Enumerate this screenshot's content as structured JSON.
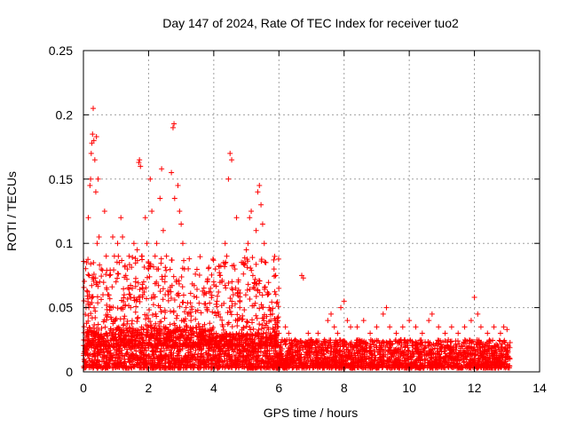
{
  "chart_data": {
    "type": "scatter",
    "title": "Day 147 of 2024, Rate Of TEC Index for receiver tuo2",
    "xlabel": "GPS time / hours",
    "ylabel": "ROTI / TECUs",
    "xlim": [
      0,
      14
    ],
    "ylim": [
      0,
      0.25
    ],
    "xticks": [
      "0",
      "2",
      "4",
      "6",
      "8",
      "10",
      "12",
      "14"
    ],
    "yticks": [
      "0",
      "0.05",
      "0.1",
      "0.15",
      "0.2",
      "0.25"
    ],
    "grid": true,
    "marker": "+",
    "color": "#ff0000",
    "series": [
      {
        "name": "ROTI",
        "points": [
          [
            0.05,
            0.02
          ],
          [
            0.08,
            0.05
          ],
          [
            0.1,
            0.085
          ],
          [
            0.12,
            0.03
          ],
          [
            0.15,
            0.12
          ],
          [
            0.18,
            0.06
          ],
          [
            0.2,
            0.145
          ],
          [
            0.22,
            0.15
          ],
          [
            0.24,
            0.17
          ],
          [
            0.26,
            0.178
          ],
          [
            0.28,
            0.185
          ],
          [
            0.3,
            0.205
          ],
          [
            0.32,
            0.18
          ],
          [
            0.35,
            0.165
          ],
          [
            0.38,
            0.14
          ],
          [
            0.4,
            0.183
          ],
          [
            0.42,
            0.1
          ],
          [
            0.45,
            0.15
          ],
          [
            0.48,
            0.105
          ],
          [
            0.5,
            0.07
          ],
          [
            0.55,
            0.08
          ],
          [
            0.6,
            0.06
          ],
          [
            0.65,
            0.125
          ],
          [
            0.7,
            0.09
          ],
          [
            0.75,
            0.06
          ],
          [
            0.8,
            0.075
          ],
          [
            0.85,
            0.05
          ],
          [
            0.9,
            0.105
          ],
          [
            0.95,
            0.09
          ],
          [
            1.0,
            0.07
          ],
          [
            1.05,
            0.1
          ],
          [
            1.1,
            0.085
          ],
          [
            1.15,
            0.12
          ],
          [
            1.2,
            0.105
          ],
          [
            1.25,
            0.06
          ],
          [
            1.3,
            0.075
          ],
          [
            1.35,
            0.08
          ],
          [
            1.4,
            0.09
          ],
          [
            1.45,
            0.05
          ],
          [
            1.5,
            0.065
          ],
          [
            1.55,
            0.1
          ],
          [
            1.6,
            0.07
          ],
          [
            1.65,
            0.095
          ],
          [
            1.7,
            0.163
          ],
          [
            1.72,
            0.165
          ],
          [
            1.75,
            0.16
          ],
          [
            1.8,
            0.09
          ],
          [
            1.85,
            0.07
          ],
          [
            1.9,
            0.12
          ],
          [
            1.95,
            0.1
          ],
          [
            2.0,
            0.08
          ],
          [
            2.05,
            0.15
          ],
          [
            2.1,
            0.125
          ],
          [
            2.15,
            0.06
          ],
          [
            2.2,
            0.09
          ],
          [
            2.25,
            0.1
          ],
          [
            2.3,
            0.08
          ],
          [
            2.35,
            0.135
          ],
          [
            2.4,
            0.158
          ],
          [
            2.45,
            0.11
          ],
          [
            2.5,
            0.07
          ],
          [
            2.55,
            0.09
          ],
          [
            2.6,
            0.06
          ],
          [
            2.7,
            0.155
          ],
          [
            2.75,
            0.19
          ],
          [
            2.78,
            0.193
          ],
          [
            2.8,
            0.135
          ],
          [
            2.85,
            0.07
          ],
          [
            2.9,
            0.145
          ],
          [
            2.95,
            0.125
          ],
          [
            3.0,
            0.115
          ],
          [
            3.05,
            0.1
          ],
          [
            3.1,
            0.08
          ],
          [
            3.15,
            0.05
          ],
          [
            3.2,
            0.045
          ],
          [
            3.3,
            0.04
          ],
          [
            3.4,
            0.03
          ],
          [
            3.5,
            0.028
          ],
          [
            3.6,
            0.025
          ],
          [
            3.7,
            0.06
          ],
          [
            3.8,
            0.07
          ],
          [
            3.9,
            0.065
          ],
          [
            4.0,
            0.07
          ],
          [
            4.05,
            0.08
          ],
          [
            4.1,
            0.055
          ],
          [
            4.15,
            0.045
          ],
          [
            4.2,
            0.075
          ],
          [
            4.25,
            0.07
          ],
          [
            4.3,
            0.085
          ],
          [
            4.35,
            0.1
          ],
          [
            4.4,
            0.09
          ],
          [
            4.45,
            0.15
          ],
          [
            4.5,
            0.17
          ],
          [
            4.55,
            0.165
          ],
          [
            4.6,
            0.06
          ],
          [
            4.65,
            0.08
          ],
          [
            4.7,
            0.12
          ],
          [
            4.75,
            0.07
          ],
          [
            4.8,
            0.05
          ],
          [
            4.9,
            0.085
          ],
          [
            5.0,
            0.095
          ],
          [
            5.05,
            0.1
          ],
          [
            5.1,
            0.12
          ],
          [
            5.15,
            0.125
          ],
          [
            5.2,
            0.075
          ],
          [
            5.25,
            0.065
          ],
          [
            5.3,
            0.11
          ],
          [
            5.35,
            0.14
          ],
          [
            5.4,
            0.145
          ],
          [
            5.45,
            0.13
          ],
          [
            5.5,
            0.115
          ],
          [
            5.55,
            0.1
          ],
          [
            5.6,
            0.085
          ],
          [
            5.65,
            0.06
          ],
          [
            5.7,
            0.05
          ],
          [
            5.75,
            0.04
          ],
          [
            5.8,
            0.045
          ],
          [
            5.85,
            0.08
          ],
          [
            5.9,
            0.075
          ],
          [
            5.95,
            0.035
          ],
          [
            6.0,
            0.03
          ],
          [
            6.1,
            0.025
          ],
          [
            6.2,
            0.035
          ],
          [
            6.3,
            0.03
          ],
          [
            6.4,
            0.02
          ],
          [
            6.5,
            0.025
          ],
          [
            6.7,
            0.075
          ],
          [
            6.75,
            0.073
          ],
          [
            6.9,
            0.03
          ],
          [
            7.0,
            0.025
          ],
          [
            7.2,
            0.03
          ],
          [
            7.4,
            0.025
          ],
          [
            7.5,
            0.04
          ],
          [
            7.6,
            0.045
          ],
          [
            7.7,
            0.035
          ],
          [
            7.8,
            0.03
          ],
          [
            7.9,
            0.05
          ],
          [
            8.0,
            0.055
          ],
          [
            8.1,
            0.04
          ],
          [
            8.2,
            0.035
          ],
          [
            8.4,
            0.035
          ],
          [
            8.6,
            0.04
          ],
          [
            8.8,
            0.03
          ],
          [
            9.0,
            0.035
          ],
          [
            9.2,
            0.045
          ],
          [
            9.3,
            0.05
          ],
          [
            9.4,
            0.035
          ],
          [
            9.6,
            0.03
          ],
          [
            9.8,
            0.035
          ],
          [
            10.0,
            0.04
          ],
          [
            10.2,
            0.035
          ],
          [
            10.4,
            0.03
          ],
          [
            10.6,
            0.04
          ],
          [
            10.7,
            0.045
          ],
          [
            10.9,
            0.035
          ],
          [
            11.1,
            0.03
          ],
          [
            11.3,
            0.035
          ],
          [
            11.5,
            0.03
          ],
          [
            11.7,
            0.035
          ],
          [
            11.9,
            0.04
          ],
          [
            12.0,
            0.058
          ],
          [
            12.1,
            0.045
          ],
          [
            12.2,
            0.035
          ],
          [
            12.4,
            0.03
          ],
          [
            12.6,
            0.035
          ],
          [
            12.8,
            0.03
          ],
          [
            12.9,
            0.035
          ],
          [
            13.0,
            0.033
          ],
          [
            13.05,
            0.02
          ]
        ],
        "baseline_band": [
          {
            "x": [
              0.0,
              4.0
            ],
            "ymin": 0.003,
            "ymax": 0.035
          },
          {
            "x": [
              4.0,
              6.0
            ],
            "ymin": 0.003,
            "ymax": 0.03
          },
          {
            "x": [
              6.0,
              13.1
            ],
            "ymin": 0.003,
            "ymax": 0.025
          }
        ]
      }
    ]
  }
}
